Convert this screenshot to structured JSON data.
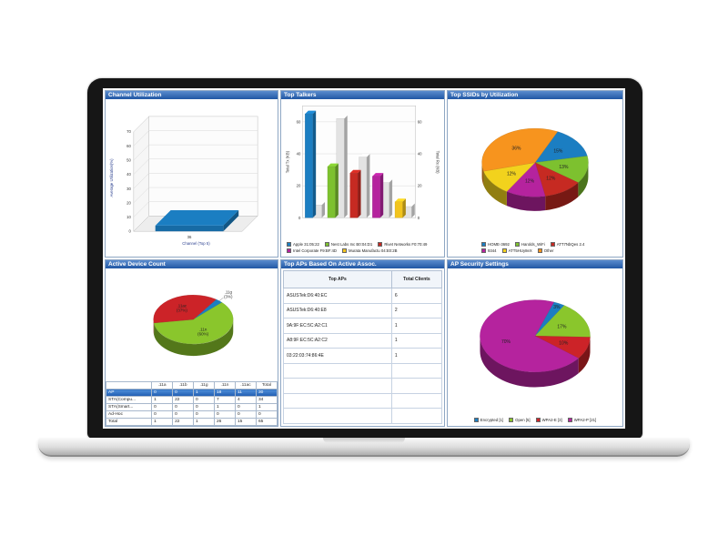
{
  "chart_data": [
    {
      "type": "bar",
      "title": "Channel Utilization",
      "ylabel": "Average Utilization(%)",
      "xlabel": "Channel (Top 5)",
      "yticks": [
        0,
        10,
        20,
        30,
        40,
        50,
        60,
        70
      ],
      "ylim": [
        0,
        70
      ],
      "categories": [
        "36"
      ],
      "values": [
        4
      ],
      "color": "#1b7ec2"
    },
    {
      "type": "bar",
      "title": "Top Talkers",
      "ylabel": "Total Tx (KB)",
      "ylabel_right": "Total Rx (KB)",
      "yticks": [
        0,
        20,
        40,
        60
      ],
      "ylim": [
        0,
        70
      ],
      "categories": [
        "Apple 31:05:22",
        "Nest Labs Inc B0:04:D1",
        "Rivet Networks F0:70:49",
        "Intel Corporate F9:BF:4D",
        "Murata Manufactu 04:E0:2B"
      ],
      "series": [
        {
          "name": "Total Tx (KB)",
          "values": [
            65,
            32,
            28,
            26,
            10
          ]
        },
        {
          "name": "Total Rx (KB)",
          "values": [
            8,
            62,
            38,
            22,
            7
          ]
        }
      ],
      "bar_colors": [
        "#1b7ec2",
        "#7dc12f",
        "#c62a22",
        "#b5239e",
        "#f2c41d"
      ],
      "rx_color": "#e3e3e3",
      "legend_position": "bottom"
    },
    {
      "type": "pie",
      "title": "Top SSIDs by Utilization",
      "labels": [
        "HOME-3692",
        "Harolds_WiFi",
        "ATT7NbQes 2.4",
        "9344",
        "ATT5HUy8eX",
        "Other"
      ],
      "values": [
        15,
        13,
        12,
        12,
        12,
        36
      ],
      "slice_labels": [
        "15%",
        "13%",
        "12%",
        "12%",
        "12%",
        "36%"
      ],
      "colors": [
        "#1b7ec2",
        "#7dc12f",
        "#c62a22",
        "#b5239e",
        "#f2d21d",
        "#f7941e"
      ],
      "start_angle": -65,
      "legend_position": "bottom"
    },
    {
      "type": "pie+table",
      "title": "Active Device Count",
      "pie": {
        "labels": [
          ".11g",
          ".11n",
          ".11ac"
        ],
        "values": [
          3,
          60,
          37
        ],
        "slice_labels": [
          ".11g|(3%)",
          ".11n|(60%)",
          ".11ac|(37%)"
        ],
        "colors": [
          "#1b7ec2",
          "#8ac62c",
          "#cc2328"
        ],
        "start_angle": -55
      },
      "table": {
        "headers": [
          "",
          ".11a",
          ".11b",
          ".11g",
          ".11n",
          ".11ac",
          "Total"
        ],
        "rows": [
          [
            "AP",
            "0",
            "0",
            "1",
            "18",
            "11",
            "30"
          ],
          [
            "STA(Compu...",
            "1",
            "22",
            "0",
            "7",
            "4",
            "34"
          ],
          [
            "STA(Smart...",
            "0",
            "0",
            "0",
            "1",
            "0",
            "1"
          ],
          [
            "Ad-Hoc",
            "0",
            "0",
            "0",
            "0",
            "0",
            "0"
          ],
          [
            "Total",
            "1",
            "22",
            "1",
            "26",
            "15",
            "65"
          ]
        ],
        "selected_row": 0
      }
    },
    {
      "type": "table",
      "title": "Top APs Based On Active Assoc.",
      "headers": [
        "Top APs",
        "Total Clients"
      ],
      "rows": [
        [
          "ASUSTek:D6:40:EC",
          "6"
        ],
        [
          "ASUSTek:D6:40:E8",
          "2"
        ],
        [
          "9A:9F:EC:5C:A2:C1",
          "1"
        ],
        [
          "A8:9F:EC:5C:A2:C2",
          "1"
        ],
        [
          "03:22:03:74:86:4E",
          "1"
        ]
      ],
      "empty_rows": 4
    },
    {
      "type": "pie",
      "title": "AP Security Settings",
      "labels": [
        "Encrypted [1]",
        "Open [5]",
        "WPA2-E [3]",
        "WPA2-P [21]"
      ],
      "values": [
        1,
        5,
        3,
        21
      ],
      "slice_labels": [
        "3%",
        "17%",
        "10%",
        "70%"
      ],
      "colors": [
        "#1b7ec2",
        "#8ac62c",
        "#cc2328",
        "#b5239e"
      ],
      "start_angle": -70,
      "legend_position": "bottom"
    }
  ],
  "theme": {
    "panel_header_from": "#5a8cce",
    "panel_header_to": "#2157a4",
    "selected_row_color": "#1e5bb0"
  }
}
